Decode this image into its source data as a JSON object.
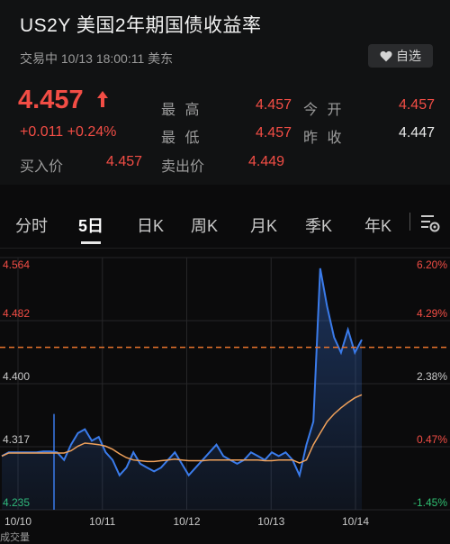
{
  "title": "US2Y   美国2年期国债收益率",
  "status": "交易中 10/13 18:00:11 美东",
  "fav_label": "自选",
  "price": "4.457",
  "change": "+0.011  +0.24%",
  "stats": {
    "high_label": "最 高",
    "high": "4.457",
    "open_label": "今 开",
    "open": "4.457",
    "low_label": "最 低",
    "low": "4.457",
    "prev_label": "昨 收",
    "prev": "4.447",
    "bid_label": "买入价",
    "bid": "4.457",
    "ask_label": "卖出价",
    "ask": "4.449"
  },
  "tabs": [
    "分时",
    "5日",
    "日K",
    "周K",
    "月K",
    "季K",
    "年K"
  ],
  "active_tab": "5日",
  "bottom_text": "成交量",
  "colors": {
    "up": "#f24d45",
    "down": "#2fbf71",
    "price_line": "#3a7bea",
    "avg_line": "#f0a15a",
    "dash": "#e8742c"
  },
  "chart_data": {
    "type": "line",
    "y_ticks_left": [
      "4.564",
      "4.482",
      "4.400",
      "4.317",
      "4.235"
    ],
    "y_ticks_right": [
      "6.20%",
      "4.29%",
      "2.38%",
      "0.47%",
      "-1.45%"
    ],
    "x_ticks": [
      "10/10",
      "10/11",
      "10/12",
      "10/13",
      "10/14"
    ],
    "ylim": [
      4.235,
      4.564
    ],
    "prev_close": 4.447,
    "series": [
      {
        "values": [
          4.305,
          4.31,
          4.31,
          4.31,
          4.31,
          4.31,
          4.311,
          4.311,
          4.31,
          4.3,
          4.32,
          4.335,
          4.34,
          4.325,
          4.33,
          4.31,
          4.3,
          4.28,
          4.29,
          4.31,
          4.295,
          4.29,
          4.285,
          4.29,
          4.3,
          4.31,
          4.295,
          4.28,
          4.29,
          4.3,
          4.31,
          4.32,
          4.305,
          4.3,
          4.295,
          4.3,
          4.31,
          4.305,
          4.3,
          4.31,
          4.305,
          4.31,
          4.3,
          4.28,
          4.32,
          4.35,
          4.55,
          4.5,
          4.46,
          4.44,
          4.47,
          4.44,
          4.457
        ]
      },
      {
        "values": [
          4.305,
          4.309,
          4.309,
          4.309,
          4.309,
          4.309,
          4.309,
          4.309,
          4.309,
          4.309,
          4.312,
          4.318,
          4.322,
          4.321,
          4.32,
          4.318,
          4.314,
          4.308,
          4.303,
          4.3,
          4.299,
          4.298,
          4.298,
          4.299,
          4.3,
          4.301,
          4.3,
          4.299,
          4.299,
          4.299,
          4.3,
          4.3,
          4.3,
          4.3,
          4.3,
          4.3,
          4.3,
          4.3,
          4.299,
          4.299,
          4.3,
          4.3,
          4.3,
          4.296,
          4.3,
          4.32,
          4.335,
          4.35,
          4.36,
          4.368,
          4.375,
          4.381,
          4.385
        ]
      }
    ]
  }
}
